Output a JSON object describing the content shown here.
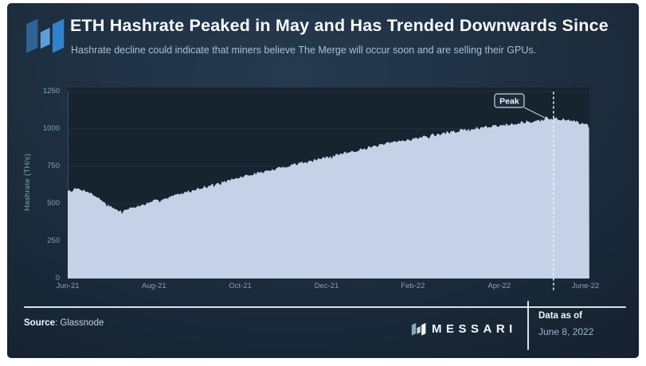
{
  "header": {
    "title": "ETH Hashrate Peaked in May and Has Trended Downwards Since",
    "subtitle": "Hashrate decline could indicate that miners believe The Merge will occur soon and are selling their GPUs."
  },
  "chart_data": {
    "type": "area",
    "series_name": "ETH Hashrate",
    "ylabel": "Hashrate (TH/s)",
    "ylim": [
      0,
      1250
    ],
    "y_ticks": [
      0,
      250,
      500,
      750,
      1000,
      1250
    ],
    "x_unit": "months since Jun-2021",
    "x_ticks": [
      {
        "label": "Jun-21",
        "m": 0
      },
      {
        "label": "Aug-21",
        "m": 2
      },
      {
        "label": "Oct-21",
        "m": 4
      },
      {
        "label": "Dec-21",
        "m": 6
      },
      {
        "label": "Feb-22",
        "m": 8
      },
      {
        "label": "Apr-22",
        "m": 10
      },
      {
        "label": "June-22",
        "m": 12
      }
    ],
    "grid": true,
    "legend": "none",
    "anchors": [
      [
        0,
        588
      ],
      [
        0.2,
        600
      ],
      [
        0.45,
        585
      ],
      [
        0.7,
        540
      ],
      [
        0.9,
        500
      ],
      [
        1.1,
        462
      ],
      [
        1.25,
        448
      ],
      [
        1.45,
        470
      ],
      [
        1.7,
        487
      ],
      [
        2.0,
        518
      ],
      [
        2.3,
        540
      ],
      [
        2.6,
        565
      ],
      [
        3.0,
        600
      ],
      [
        3.4,
        630
      ],
      [
        3.7,
        652
      ],
      [
        4.07,
        682
      ],
      [
        4.4,
        705
      ],
      [
        4.7,
        722
      ],
      [
        5.0,
        745
      ],
      [
        5.35,
        772
      ],
      [
        5.7,
        792
      ],
      [
        6.07,
        812
      ],
      [
        6.4,
        838
      ],
      [
        6.7,
        860
      ],
      [
        7.0,
        875
      ],
      [
        7.35,
        898
      ],
      [
        7.7,
        918
      ],
      [
        8.07,
        938
      ],
      [
        8.4,
        955
      ],
      [
        8.7,
        970
      ],
      [
        9.0,
        985
      ],
      [
        9.35,
        1000
      ],
      [
        9.7,
        1012
      ],
      [
        10.07,
        1028
      ],
      [
        10.4,
        1040
      ],
      [
        10.7,
        1048
      ],
      [
        11.0,
        1055
      ],
      [
        11.15,
        1065
      ],
      [
        11.26,
        1075
      ],
      [
        11.4,
        1068
      ],
      [
        11.6,
        1055
      ],
      [
        11.8,
        1048
      ],
      [
        11.95,
        1040
      ],
      [
        12.05,
        1030
      ],
      [
        12.09,
        1010
      ]
    ],
    "annotation": {
      "label": "Peak",
      "m": 11.26,
      "value": 1075
    },
    "noise_amplitude": 11,
    "area_color": "#c5d1e7"
  },
  "footer": {
    "source_label": "Source",
    "source_rest": ": Glassnode",
    "brand": "MESSARI",
    "data_as_of_label": "Data as of",
    "data_as_of_date": "June 8, 2022"
  },
  "colors": {
    "panel_bg": "#17232e",
    "grid": "#253241",
    "axis": "#3d4e5f",
    "area": "#c5d1e7",
    "dashed_line": "#f2f6fa",
    "annotation_border": "#c9d4e0",
    "annotation_fill": "#1d2c3c",
    "annotation_text": "#eef3f8",
    "logo_left": "#2f6394",
    "logo_mid": "#5d9fd6",
    "logo_right": "#3181cf",
    "logo_footer_left": "#8fa6b8",
    "logo_footer_mid": "#c9d6e2",
    "logo_footer_right": "#eef4f9"
  }
}
